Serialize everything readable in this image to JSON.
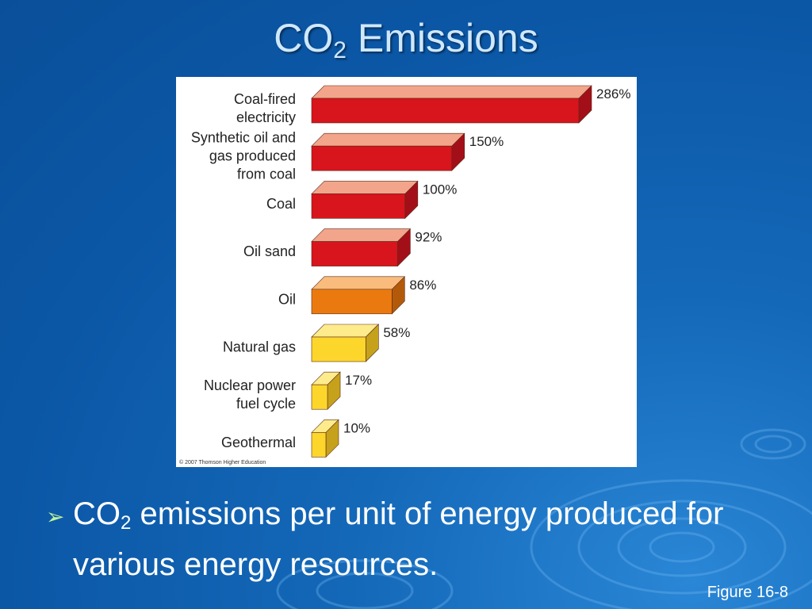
{
  "slide": {
    "title_main": "CO",
    "title_sub": "2",
    "title_rest": " Emissions",
    "bullet_main": "CO",
    "bullet_sub": "2",
    "bullet_rest": " emissions per unit of energy produced for various energy resources.",
    "figure_label": "Figure 16-8",
    "copyright": "© 2007 Thomson Higher Education",
    "bullet_icon": "arrow-bullet-icon"
  },
  "chart_data": {
    "type": "bar",
    "orientation": "horizontal",
    "style": "3d",
    "categories": [
      [
        "Coal-fired",
        "electricity"
      ],
      [
        "Synthetic oil and",
        "gas produced",
        "from coal"
      ],
      [
        "Coal"
      ],
      [
        "Oil sand"
      ],
      [
        "Oil"
      ],
      [
        "Natural gas"
      ],
      [
        "Nuclear power",
        "fuel cycle"
      ],
      [
        "Geothermal"
      ]
    ],
    "values": [
      286,
      150,
      100,
      92,
      86,
      58,
      17,
      10
    ],
    "labels": [
      "286%",
      "150%",
      "100%",
      "92%",
      "86%",
      "58%",
      "17%",
      "10%"
    ],
    "unit": "%",
    "colors": [
      {
        "front": "#d8141c",
        "top": "#f2a58a",
        "side": "#a30f18"
      },
      {
        "front": "#d8141c",
        "top": "#f2a58a",
        "side": "#a30f18"
      },
      {
        "front": "#d8141c",
        "top": "#f2a58a",
        "side": "#a30f18"
      },
      {
        "front": "#d8141c",
        "top": "#f2a58a",
        "side": "#a30f18"
      },
      {
        "front": "#ea7a10",
        "top": "#f9bc7c",
        "side": "#b35a0a"
      },
      {
        "front": "#fcd62b",
        "top": "#fdeb8c",
        "side": "#c6a21c"
      },
      {
        "front": "#fcd62b",
        "top": "#fdeb8c",
        "side": "#c6a21c"
      },
      {
        "front": "#fcd62b",
        "top": "#fdeb8c",
        "side": "#c6a21c"
      }
    ],
    "xlim": [
      0,
      286
    ],
    "grid": false,
    "legend": "none"
  }
}
